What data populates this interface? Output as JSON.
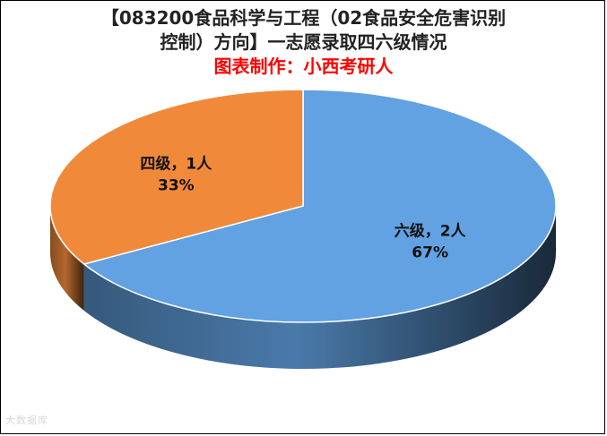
{
  "chart_data": {
    "type": "pie",
    "title_line1": "【083200食品科学与工程（02食品安全危害识别",
    "title_line2": "控制）方向】一志愿录取四六级情况",
    "subtitle": "图表制作：小西考研人",
    "slices": [
      {
        "name": "六级",
        "count_text": "六级，2人",
        "value": 2,
        "percent": "67%",
        "color": "#62a2e2"
      },
      {
        "name": "四级",
        "count_text": "四级，1人",
        "value": 1,
        "percent": "33%",
        "color": "#f08a3a"
      }
    ],
    "style": "3d-pie"
  },
  "colors": {
    "title": "#222222",
    "subtitle": "#ff0000"
  },
  "watermark": "大数据库"
}
